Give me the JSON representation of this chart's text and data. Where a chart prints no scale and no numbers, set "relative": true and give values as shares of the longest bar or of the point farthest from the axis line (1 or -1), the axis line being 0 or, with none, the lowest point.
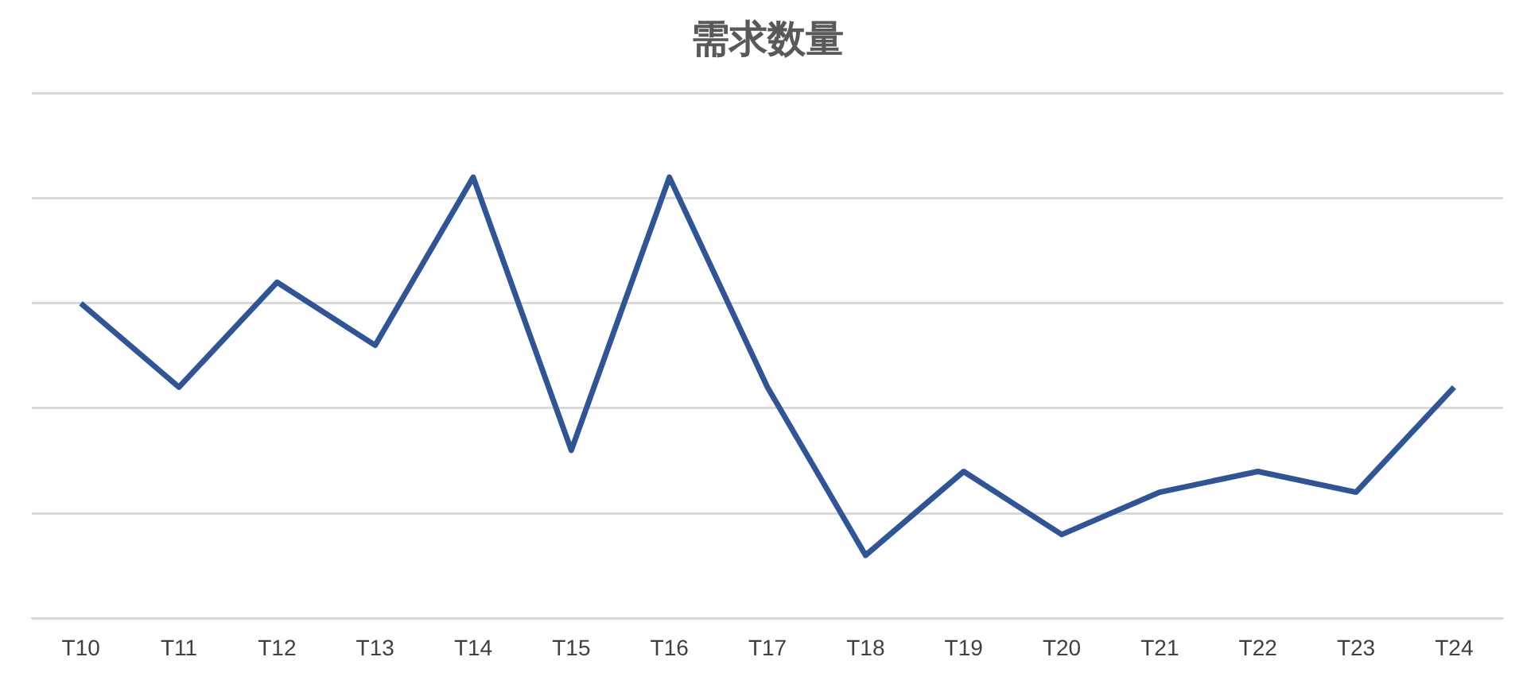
{
  "chart_data": {
    "type": "line",
    "title": "需求数量",
    "relative": true,
    "grid": "y",
    "marker": "none",
    "categories": [
      "T10",
      "T11",
      "T12",
      "T13",
      "T14",
      "T15",
      "T16",
      "T17",
      "T18",
      "T19",
      "T20",
      "T21",
      "T22",
      "T23",
      "T24"
    ],
    "series": [
      {
        "color": "#2f5597",
        "values": [
          0.714,
          0.524,
          0.762,
          0.619,
          1,
          0.381,
          1,
          0.524,
          0.143,
          0.333,
          0.19,
          0.286,
          0.333,
          0.286,
          0.524
        ]
      }
    ]
  }
}
